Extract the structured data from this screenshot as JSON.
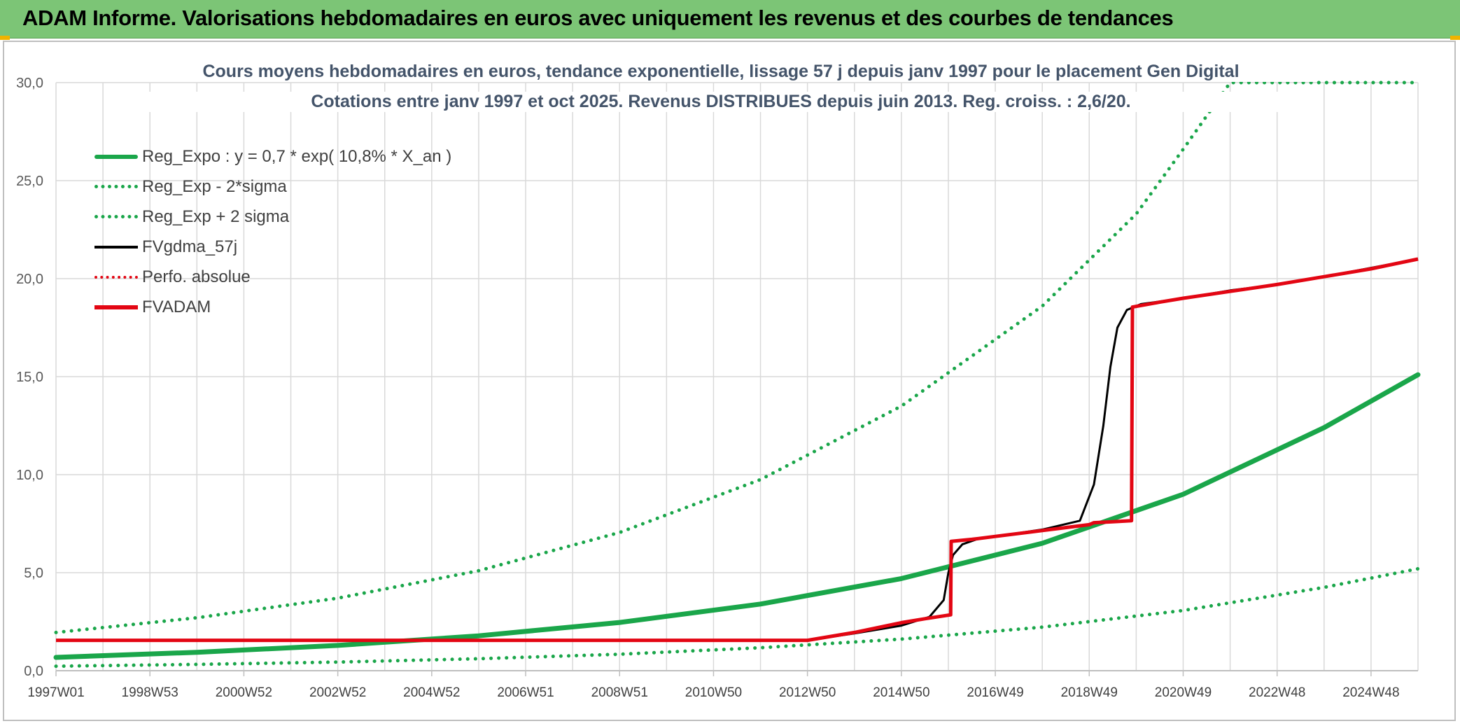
{
  "header": {
    "title": "ADAM Informe. Valorisations hebdomadaires en euros avec uniquement les revenus et des courbes de tendances"
  },
  "colors": {
    "header_bg": "#7cc576",
    "reg_expo": "#1aa64a",
    "fvgdma": "#000000",
    "perfo": "#e30613",
    "fvadam": "#e30613",
    "grid": "#d9d9d9",
    "title_text": "#44546a"
  },
  "chart_data": {
    "type": "line",
    "title_line1": "Cours moyens hebdomadaires en euros, tendance exponentielle, lissage 57 j depuis janv 1997 pour le placement Gen Digital",
    "title_line2": "Cotations entre janv 1997 et oct 2025. Revenus DISTRIBUES depuis juin 2013. Reg. croiss. : 2,6/20.",
    "xlabel": "",
    "ylabel": "",
    "x_range_years": [
      1997.0,
      2026.0
    ],
    "ylim": [
      0,
      30
    ],
    "y_ticks": [
      "0,0",
      "5,0",
      "10,0",
      "15,0",
      "20,0",
      "25,0",
      "30,0"
    ],
    "x_tick_labels": [
      "1997W01",
      "1998W53",
      "2000W52",
      "2002W52",
      "2004W52",
      "2006W51",
      "2008W51",
      "2010W50",
      "2012W50",
      "2014W50",
      "2016W49",
      "2018W49",
      "2020W49",
      "2022W48",
      "2024W48"
    ],
    "grid": true,
    "legend_position": "top-left",
    "series": [
      {
        "name": "Reg_Expo : y = 0,7 * exp( 10,8% *  X_an )",
        "style": "solid-thick",
        "color": "#1aa64a",
        "x": [
          1997,
          2000,
          2003,
          2006,
          2009,
          2012,
          2015,
          2018,
          2021,
          2024,
          2026
        ],
        "y": [
          0.68,
          0.94,
          1.29,
          1.78,
          2.46,
          3.4,
          4.7,
          6.5,
          9.0,
          12.4,
          15.1
        ]
      },
      {
        "name": "Reg_Exp - 2*sigma",
        "style": "dotted",
        "color": "#1aa64a",
        "x": [
          1997,
          2000,
          2003,
          2006,
          2009,
          2012,
          2015,
          2018,
          2021,
          2024,
          2026
        ],
        "y": [
          0.23,
          0.32,
          0.44,
          0.61,
          0.84,
          1.17,
          1.61,
          2.22,
          3.07,
          4.25,
          5.2
        ]
      },
      {
        "name": "Reg_Exp + 2 sigma",
        "style": "dotted",
        "color": "#1aa64a",
        "x": [
          1997,
          2000,
          2003,
          2006,
          2009,
          2012,
          2015,
          2018,
          2020,
          2021,
          2022,
          2026
        ],
        "y": [
          1.95,
          2.7,
          3.7,
          5.1,
          7.05,
          9.75,
          13.5,
          18.6,
          23.3,
          26.6,
          30.0,
          30.0
        ]
      },
      {
        "name": "FVgdma_57j",
        "style": "solid-black",
        "color": "#000000",
        "x": [
          1997,
          2013.0,
          2014.0,
          2015.0,
          2015.6,
          2015.9,
          2016.0,
          2016.1,
          2016.3,
          2016.6,
          2017.0,
          2018.0,
          2018.8,
          2019.1,
          2019.3,
          2019.45,
          2019.6,
          2019.8,
          2020.1,
          2021,
          2022,
          2023,
          2024,
          2025,
          2026
        ],
        "y": [
          1.55,
          1.55,
          1.9,
          2.3,
          2.75,
          3.6,
          5.0,
          5.9,
          6.45,
          6.7,
          6.85,
          7.2,
          7.65,
          9.5,
          12.5,
          15.5,
          17.5,
          18.4,
          18.7,
          19.0,
          19.4,
          19.7,
          20.1,
          20.55,
          21.0
        ]
      },
      {
        "name": "Perfo. absolue",
        "style": "dotted",
        "color": "#e30613",
        "x": [],
        "y": []
      },
      {
        "name": "FVADAM",
        "style": "solid-red",
        "color": "#e30613",
        "x": [
          1997,
          2013.0,
          2013.5,
          2014.0,
          2014.5,
          2015.0,
          2015.5,
          2016.05,
          2016.06,
          2016.5,
          2017.0,
          2018.0,
          2019.0,
          2019.1,
          2019.5,
          2019.9,
          2019.92,
          2020.5,
          2021,
          2022,
          2023,
          2024,
          2025,
          2026
        ],
        "y": [
          1.55,
          1.55,
          1.75,
          1.95,
          2.2,
          2.45,
          2.65,
          2.85,
          6.6,
          6.7,
          6.85,
          7.15,
          7.45,
          7.55,
          7.6,
          7.65,
          18.55,
          18.8,
          19.0,
          19.35,
          19.7,
          20.1,
          20.5,
          21.0
        ]
      }
    ]
  }
}
